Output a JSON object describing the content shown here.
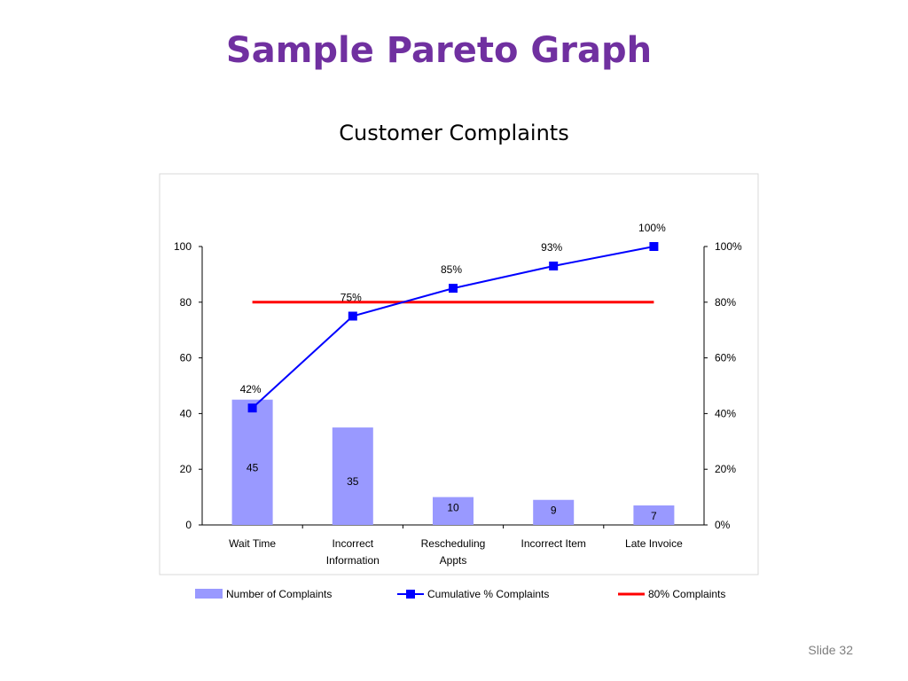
{
  "slide": {
    "title": "Sample Pareto Graph",
    "number_label": "Slide 32"
  },
  "colors": {
    "title": "#7030a0",
    "bars": "#9999ff",
    "cumulative_line": "#0000ff",
    "threshold_line": "#ff0000"
  },
  "chart_data": {
    "type": "bar",
    "title": "Customer Complaints",
    "xlabel": "",
    "ylabel": "",
    "categories": [
      [
        "Wait Time"
      ],
      [
        "Incorrect",
        "Information"
      ],
      [
        "Rescheduling",
        "Appts"
      ],
      [
        "Incorrect Item"
      ],
      [
        "Late Invoice"
      ]
    ],
    "series": [
      {
        "name": "Number of Complaints",
        "type": "bar",
        "axis": "left",
        "values": [
          45,
          35,
          10,
          9,
          7
        ],
        "data_labels": [
          "45",
          "35",
          "10",
          "9",
          "7"
        ]
      },
      {
        "name": "Cumulative % Complaints",
        "type": "line",
        "axis": "right",
        "marker": "square",
        "values": [
          42,
          75,
          85,
          93,
          100
        ],
        "data_labels": [
          "42%",
          "75%",
          "85%",
          "93%",
          "100%"
        ]
      },
      {
        "name": "80% Complaints",
        "type": "line",
        "axis": "right",
        "values": [
          80,
          80,
          80,
          80,
          80
        ]
      }
    ],
    "ylim": [
      0,
      100
    ],
    "y_ticks": [
      "0",
      "20",
      "40",
      "60",
      "80",
      "100"
    ],
    "y2lim": [
      0,
      100
    ],
    "y2_ticks": [
      "0%",
      "20%",
      "40%",
      "60%",
      "80%",
      "100%"
    ],
    "grid": false,
    "legend_position": "bottom"
  }
}
